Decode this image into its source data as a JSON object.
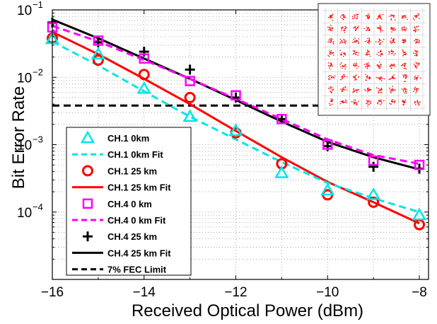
{
  "chart_data": {
    "type": "scatter",
    "title": "",
    "xlabel": "Received Optical Power (dBm)",
    "ylabel": "Bit Error Rate",
    "xlim": [
      -16,
      -7.8
    ],
    "ylim": [
      1e-05,
      0.1
    ],
    "y_scale": "log",
    "grid": true,
    "legend_position": "lower-left",
    "x_ticks": [
      -16,
      -14,
      -12,
      -10,
      -8
    ],
    "x_tick_labels": [
      "−16",
      "−14",
      "−12",
      "−10",
      "−8"
    ],
    "y_ticks": [
      {
        "value": 0.1,
        "mantissa": "10",
        "exponent": "−1"
      },
      {
        "value": 0.01,
        "mantissa": "10",
        "exponent": "−2"
      },
      {
        "value": 0.001,
        "mantissa": "10",
        "exponent": "−3"
      },
      {
        "value": 0.0001,
        "mantissa": "10",
        "exponent": "−4"
      }
    ],
    "series": [
      {
        "name": "CH.1 0km",
        "kind": "marker",
        "marker": "triangle",
        "color": "#00e5e5",
        "x": [
          -16,
          -15,
          -14,
          -13,
          -12,
          -11,
          -10,
          -9,
          -8
        ],
        "y": [
          0.037,
          0.022,
          0.0068,
          0.0026,
          0.0016,
          0.00038,
          0.00021,
          0.00018,
          9e-05
        ]
      },
      {
        "name": "CH.1 0km Fit",
        "kind": "line",
        "dash": "dashed",
        "color": "#00e5e5",
        "x": [
          -16,
          -15,
          -14,
          -13,
          -12,
          -11,
          -10,
          -9,
          -8
        ],
        "y": [
          0.034,
          0.015,
          0.0062,
          0.0026,
          0.0012,
          0.00055,
          0.00027,
          0.00016,
          0.0001
        ]
      },
      {
        "name": "CH.1 25 km",
        "kind": "marker",
        "marker": "circle",
        "color": "#ff0000",
        "x": [
          -16,
          -15,
          -14,
          -13,
          -12,
          -11,
          -10,
          -9,
          -8
        ],
        "y": [
          0.038,
          0.018,
          0.011,
          0.005,
          0.0015,
          0.00052,
          0.00018,
          0.00014,
          6.5e-05
        ]
      },
      {
        "name": "CH.1 25 km Fit",
        "kind": "line",
        "dash": "solid",
        "color": "#ff0000",
        "x": [
          -16,
          -15,
          -14,
          -13,
          -12,
          -11,
          -10,
          -9,
          -8
        ],
        "y": [
          0.047,
          0.022,
          0.0095,
          0.004,
          0.0016,
          0.00065,
          0.00028,
          0.00014,
          6.8e-05
        ]
      },
      {
        "name": "CH.4 0 km",
        "kind": "marker",
        "marker": "square",
        "color": "#ff00ff",
        "x": [
          -16,
          -15,
          -14,
          -13,
          -12,
          -11,
          -10,
          -9,
          -8
        ],
        "y": [
          0.055,
          0.035,
          0.019,
          0.0088,
          0.0054,
          0.0024,
          0.001,
          0.00058,
          0.0005
        ]
      },
      {
        "name": "CH.4 0 km Fit",
        "kind": "line",
        "dash": "dashed",
        "color": "#ff00ff",
        "x": [
          -16,
          -15,
          -14,
          -13,
          -12,
          -11,
          -10,
          -9,
          -8
        ],
        "y": [
          0.058,
          0.034,
          0.018,
          0.0095,
          0.0048,
          0.0024,
          0.0012,
          0.0007,
          0.00052
        ]
      },
      {
        "name": "CH.4 25 km",
        "kind": "marker",
        "marker": "plus",
        "color": "#000000",
        "x": [
          -16,
          -15,
          -14,
          -13,
          -12,
          -11,
          -10,
          -9,
          -8
        ],
        "y": [
          0.065,
          0.033,
          0.024,
          0.013,
          0.005,
          0.0024,
          0.00095,
          0.00047,
          0.00044
        ]
      },
      {
        "name": "CH.4 25 km Fit",
        "kind": "line",
        "dash": "solid",
        "color": "#000000",
        "x": [
          -16,
          -15,
          -14,
          -13,
          -12,
          -11,
          -10,
          -9,
          -8
        ],
        "y": [
          0.072,
          0.038,
          0.019,
          0.0095,
          0.0046,
          0.0022,
          0.0011,
          0.00065,
          0.00043
        ]
      },
      {
        "name": "7% FEC Limit",
        "kind": "line",
        "dash": "dashed",
        "color": "#000000",
        "x": [
          -16,
          -7.8
        ],
        "y": [
          0.0038,
          0.0038
        ]
      }
    ],
    "inset": {
      "type": "scatter",
      "description_colors": {
        "points": "#ff0000"
      },
      "grid_size": 8
    }
  }
}
